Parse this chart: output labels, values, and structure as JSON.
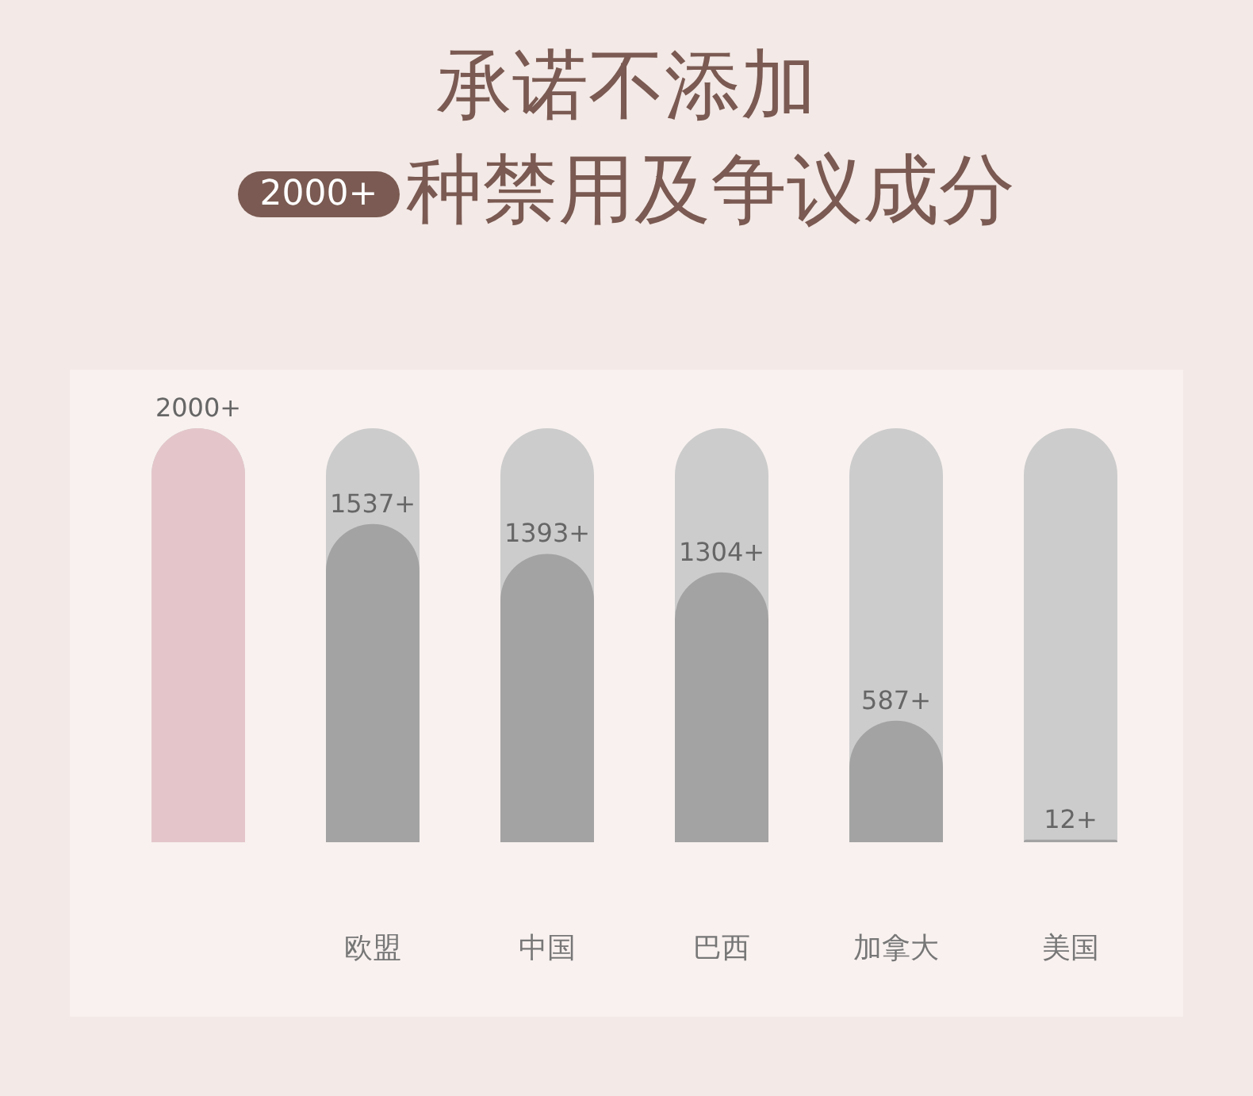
{
  "chart_data": {
    "type": "bar",
    "title": "承诺不添加",
    "subtitle": "2000+种禁用及争议成分",
    "categories": [
      null,
      "欧盟",
      "中国",
      "巴西",
      "加拿大",
      "美国"
    ],
    "values": [
      2000,
      1537,
      1393,
      1304,
      587,
      12
    ],
    "colors": [
      "#e4c6ca",
      "#a3a3a3",
      "#a3a3a3",
      "#a3a3a3",
      "#a3a3a3",
      "#a3a3a3"
    ],
    "value_labels": [
      "2000+",
      "1537+",
      "1393+",
      "1304+",
      "587+",
      "12+"
    ]
  }
}
